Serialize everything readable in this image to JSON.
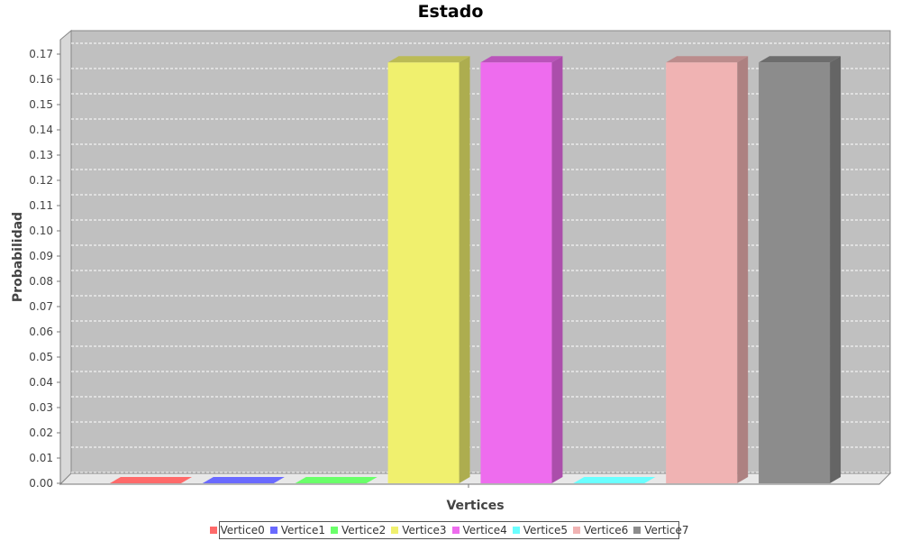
{
  "chart_data": {
    "type": "bar",
    "title": "Estado",
    "xlabel": "Vertices",
    "ylabel": "Probabilidad",
    "ylim": [
      0,
      0.17
    ],
    "yticks": [
      "0.00",
      "0.01",
      "0.02",
      "0.03",
      "0.04",
      "0.05",
      "0.06",
      "0.07",
      "0.08",
      "0.09",
      "0.10",
      "0.11",
      "0.12",
      "0.13",
      "0.14",
      "0.15",
      "0.16",
      "0.17"
    ],
    "grid": true,
    "legend_position": "bottom",
    "series": [
      {
        "name": "Vertice0",
        "value": 0.0,
        "color": "#ff6a6a"
      },
      {
        "name": "Vertice1",
        "value": 0.0,
        "color": "#6a6aff"
      },
      {
        "name": "Vertice2",
        "value": 0.0,
        "color": "#6aff6a"
      },
      {
        "name": "Vertice3",
        "value": 0.1667,
        "color": "#f0f06e"
      },
      {
        "name": "Vertice4",
        "value": 0.1667,
        "color": "#ee6cee"
      },
      {
        "name": "Vertice5",
        "value": 0.0,
        "color": "#6affff"
      },
      {
        "name": "Vertice6",
        "value": 0.1667,
        "color": "#f0b3b3"
      },
      {
        "name": "Vertice7",
        "value": 0.1667,
        "color": "#8c8c8c"
      }
    ]
  }
}
